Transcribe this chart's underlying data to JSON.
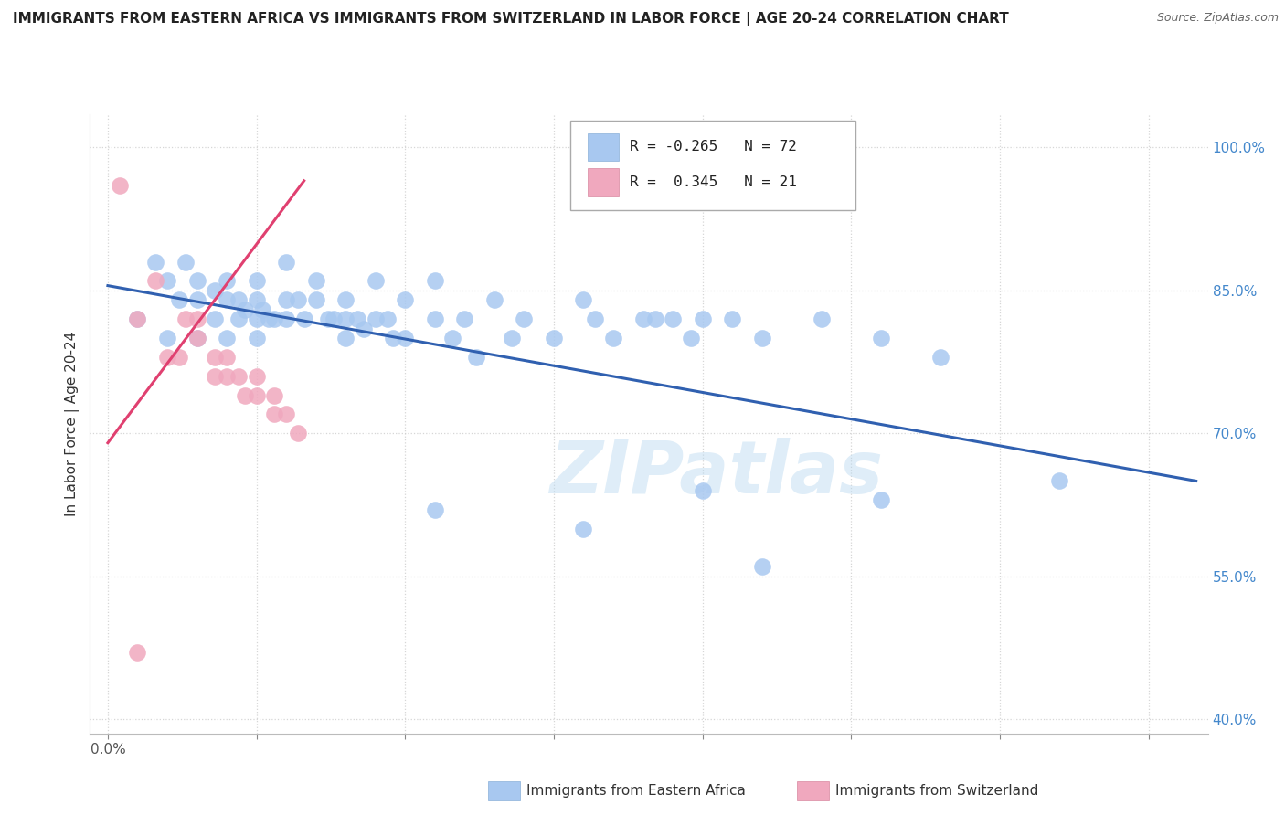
{
  "title": "IMMIGRANTS FROM EASTERN AFRICA VS IMMIGRANTS FROM SWITZERLAND IN LABOR FORCE | AGE 20-24 CORRELATION CHART",
  "source": "Source: ZipAtlas.com",
  "ylabel": "In Labor Force | Age 20-24",
  "xlim": [
    -0.003,
    0.185
  ],
  "ylim": [
    0.385,
    1.035
  ],
  "x_ticks": [
    0.0,
    0.025,
    0.05,
    0.075,
    0.1,
    0.125,
    0.15,
    0.175
  ],
  "x_tick_labels": [
    "0.0%",
    "",
    "",
    "",
    "",
    "",
    "",
    ""
  ],
  "y_ticks": [
    0.4,
    0.55,
    0.7,
    0.85,
    1.0
  ],
  "y_tick_labels": [
    "40.0%",
    "55.0%",
    "70.0%",
    "85.0%",
    "100.0%"
  ],
  "blue_R": -0.265,
  "blue_N": 72,
  "pink_R": 0.345,
  "pink_N": 21,
  "blue_color": "#a8c8f0",
  "pink_color": "#f0a8be",
  "blue_line_color": "#3060b0",
  "pink_line_color": "#e04070",
  "watermark": "ZIPatlas",
  "blue_scatter_x": [
    0.005,
    0.008,
    0.01,
    0.01,
    0.012,
    0.013,
    0.015,
    0.015,
    0.015,
    0.018,
    0.018,
    0.02,
    0.02,
    0.02,
    0.022,
    0.022,
    0.023,
    0.025,
    0.025,
    0.025,
    0.025,
    0.026,
    0.027,
    0.028,
    0.03,
    0.03,
    0.03,
    0.032,
    0.033,
    0.035,
    0.035,
    0.037,
    0.038,
    0.04,
    0.04,
    0.04,
    0.042,
    0.043,
    0.045,
    0.045,
    0.047,
    0.048,
    0.05,
    0.05,
    0.055,
    0.055,
    0.058,
    0.06,
    0.062,
    0.065,
    0.068,
    0.07,
    0.075,
    0.08,
    0.082,
    0.085,
    0.09,
    0.092,
    0.095,
    0.098,
    0.1,
    0.105,
    0.11,
    0.12,
    0.13,
    0.14,
    0.1,
    0.13,
    0.16,
    0.055,
    0.08,
    0.11
  ],
  "blue_scatter_y": [
    0.82,
    0.88,
    0.86,
    0.8,
    0.84,
    0.88,
    0.86,
    0.84,
    0.8,
    0.85,
    0.82,
    0.86,
    0.84,
    0.8,
    0.84,
    0.82,
    0.83,
    0.86,
    0.84,
    0.82,
    0.8,
    0.83,
    0.82,
    0.82,
    0.88,
    0.84,
    0.82,
    0.84,
    0.82,
    0.86,
    0.84,
    0.82,
    0.82,
    0.84,
    0.82,
    0.8,
    0.82,
    0.81,
    0.86,
    0.82,
    0.82,
    0.8,
    0.84,
    0.8,
    0.86,
    0.82,
    0.8,
    0.82,
    0.78,
    0.84,
    0.8,
    0.82,
    0.8,
    0.84,
    0.82,
    0.8,
    0.82,
    0.82,
    0.82,
    0.8,
    0.82,
    0.82,
    0.8,
    0.82,
    0.8,
    0.78,
    0.64,
    0.63,
    0.65,
    0.62,
    0.6,
    0.56
  ],
  "pink_scatter_x": [
    0.002,
    0.005,
    0.008,
    0.01,
    0.012,
    0.013,
    0.015,
    0.015,
    0.018,
    0.018,
    0.02,
    0.02,
    0.022,
    0.023,
    0.025,
    0.025,
    0.028,
    0.028,
    0.03,
    0.032,
    0.005
  ],
  "pink_scatter_y": [
    0.96,
    0.82,
    0.86,
    0.78,
    0.78,
    0.82,
    0.82,
    0.8,
    0.78,
    0.76,
    0.78,
    0.76,
    0.76,
    0.74,
    0.76,
    0.74,
    0.74,
    0.72,
    0.72,
    0.7,
    0.47
  ],
  "blue_line_x0": 0.0,
  "blue_line_x1": 0.183,
  "blue_line_y0": 0.855,
  "blue_line_y1": 0.65,
  "pink_line_x0": 0.0,
  "pink_line_x1": 0.033,
  "pink_line_y0": 0.69,
  "pink_line_y1": 0.965
}
